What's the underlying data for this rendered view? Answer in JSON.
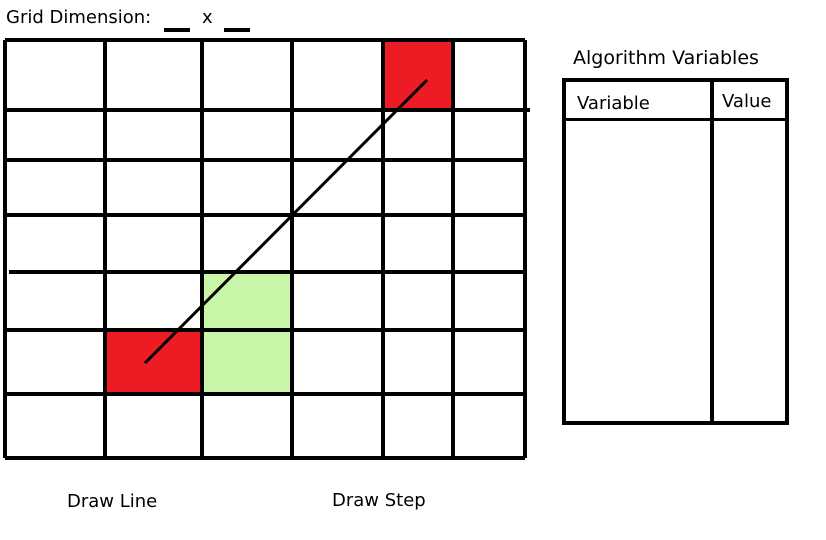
{
  "header": {
    "grid_dimension_label": "Grid Dimension:",
    "times_symbol": "x",
    "width_value": "",
    "height_value": ""
  },
  "grid": {
    "cols": 6,
    "rows": 7,
    "colors": {
      "endpoint": "#ed1c24",
      "step": "#c8f5a8",
      "line": "#000000"
    },
    "filled_cells": [
      {
        "col": 4,
        "row": 0,
        "kind": "endpoint"
      },
      {
        "col": 1,
        "row": 5,
        "kind": "endpoint"
      },
      {
        "col": 2,
        "row": 4,
        "kind": "step"
      },
      {
        "col": 2,
        "row": 5,
        "kind": "step"
      }
    ]
  },
  "variables_panel": {
    "title": "Algorithm Variables",
    "columns": [
      "Variable",
      "Value"
    ],
    "rows": []
  },
  "buttons": {
    "draw_line": "Draw Line",
    "draw_step": "Draw Step"
  }
}
